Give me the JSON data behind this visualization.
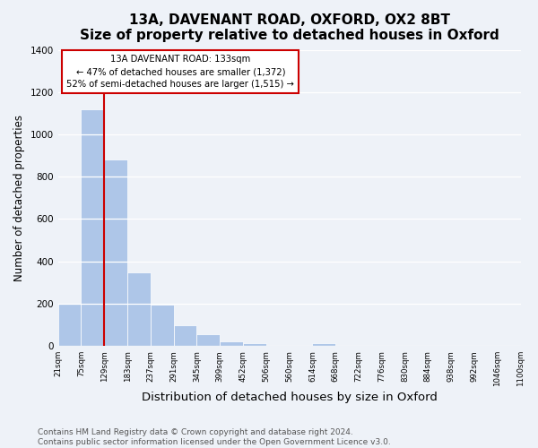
{
  "title": "13A, DAVENANT ROAD, OXFORD, OX2 8BT",
  "subtitle": "Size of property relative to detached houses in Oxford",
  "xlabel": "Distribution of detached houses by size in Oxford",
  "ylabel": "Number of detached properties",
  "bin_edges": [
    "21sqm",
    "75sqm",
    "129sqm",
    "183sqm",
    "237sqm",
    "291sqm",
    "345sqm",
    "399sqm",
    "452sqm",
    "506sqm",
    "560sqm",
    "614sqm",
    "668sqm",
    "722sqm",
    "776sqm",
    "830sqm",
    "884sqm",
    "938sqm",
    "992sqm",
    "1046sqm",
    "1100sqm"
  ],
  "bar_heights": [
    200,
    1120,
    880,
    350,
    195,
    100,
    55,
    20,
    15,
    0,
    0,
    15,
    0,
    0,
    0,
    0,
    0,
    0,
    0,
    0
  ],
  "bar_color": "#aec6e8",
  "property_line_xindex": 2,
  "property_line_color": "#cc0000",
  "annotation_title": "13A DAVENANT ROAD: 133sqm",
  "annotation_line1": "← 47% of detached houses are smaller (1,372)",
  "annotation_line2": "52% of semi-detached houses are larger (1,515) →",
  "annotation_box_color": "#ffffff",
  "annotation_box_edgecolor": "#cc0000",
  "ylim": [
    0,
    1400
  ],
  "yticks": [
    0,
    200,
    400,
    600,
    800,
    1000,
    1200,
    1400
  ],
  "footer_line1": "Contains HM Land Registry data © Crown copyright and database right 2024.",
  "footer_line2": "Contains public sector information licensed under the Open Government Licence v3.0.",
  "title_fontsize": 11,
  "xlabel_fontsize": 9.5,
  "ylabel_fontsize": 8.5,
  "footer_fontsize": 6.5,
  "background_color": "#eef2f8",
  "grid_color": "#ffffff"
}
